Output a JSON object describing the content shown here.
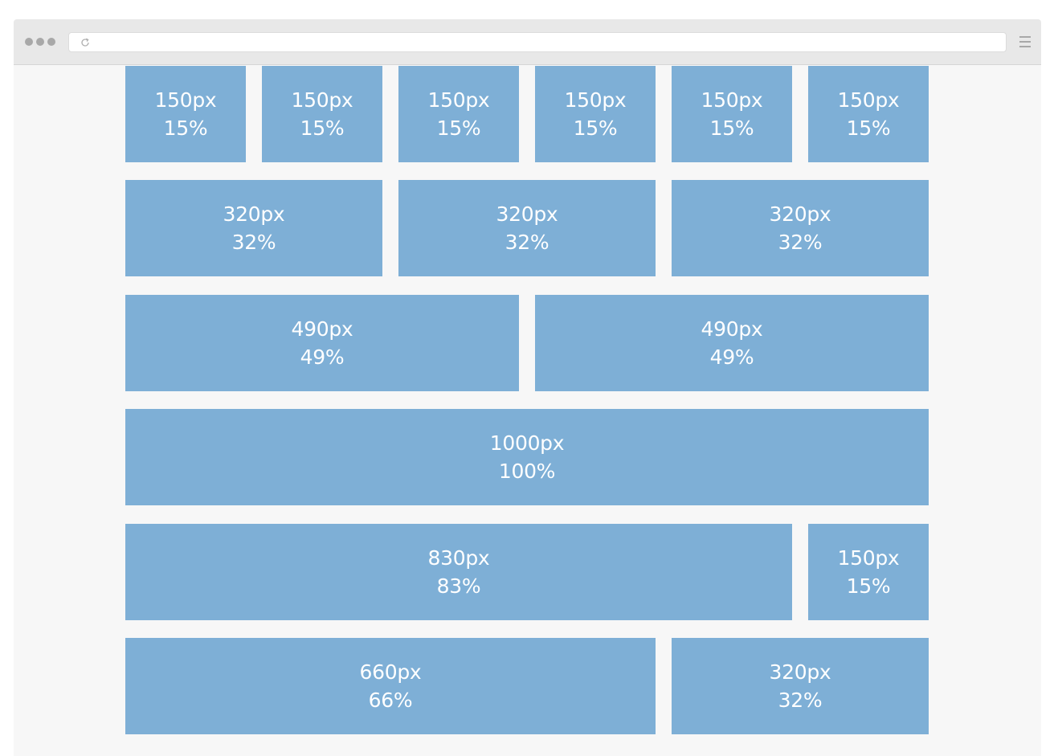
{
  "colors": {
    "box": "#7eafd6",
    "page_background": "#f7f7f7",
    "chrome_bar": "#e8e8e8",
    "box_text": "#ffffff"
  },
  "browser": {
    "icons": [
      "window-dots-icon",
      "reload-icon",
      "menu-icon"
    ]
  },
  "rows": [
    [
      {
        "px": "150px",
        "pct": "15%"
      },
      {
        "px": "150px",
        "pct": "15%"
      },
      {
        "px": "150px",
        "pct": "15%"
      },
      {
        "px": "150px",
        "pct": "15%"
      },
      {
        "px": "150px",
        "pct": "15%"
      },
      {
        "px": "150px",
        "pct": "15%"
      }
    ],
    [
      {
        "px": "320px",
        "pct": "32%"
      },
      {
        "px": "320px",
        "pct": "32%"
      },
      {
        "px": "320px",
        "pct": "32%"
      }
    ],
    [
      {
        "px": "490px",
        "pct": "49%"
      },
      {
        "px": "490px",
        "pct": "49%"
      }
    ],
    [
      {
        "px": "1000px",
        "pct": "100%"
      }
    ],
    [
      {
        "px": "830px",
        "pct": "83%"
      },
      {
        "px": "150px",
        "pct": "15%"
      }
    ],
    [
      {
        "px": "660px",
        "pct": "66%"
      },
      {
        "px": "320px",
        "pct": "32%"
      }
    ]
  ]
}
